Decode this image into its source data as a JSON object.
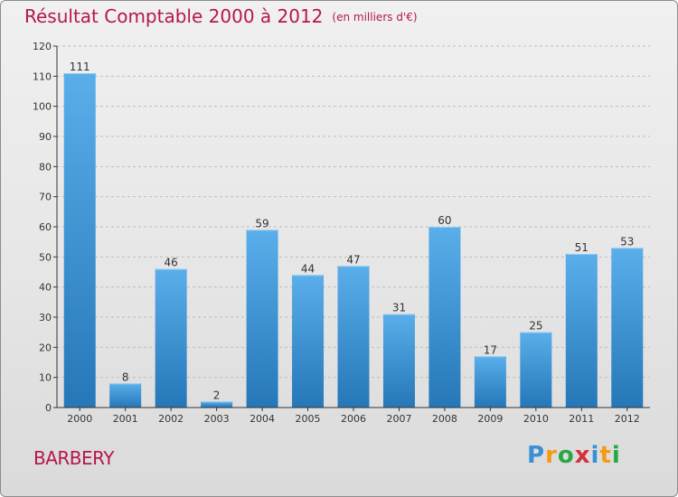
{
  "header": {
    "title": "Résultat Comptable 2000 à 2012",
    "subtitle": "(en milliers d'€)"
  },
  "commune": "BARBERY",
  "logo": {
    "text": "Proxiti",
    "letters": [
      {
        "ch": "P",
        "color": "#3a8fd6"
      },
      {
        "ch": "r",
        "color": "#f39c12"
      },
      {
        "ch": "o",
        "color": "#27a844"
      },
      {
        "ch": "x",
        "color": "#d62f3c"
      },
      {
        "ch": "i",
        "color": "#3a8fd6"
      },
      {
        "ch": "t",
        "color": "#f39c12"
      },
      {
        "ch": "i",
        "color": "#27a844"
      }
    ]
  },
  "colors": {
    "bar_light": "#5aaeea",
    "bar_dark": "#2577b8",
    "title": "#b5164f",
    "grid": "#bdbdbd",
    "axis": "#333333",
    "tick_text": "#333333",
    "label_text": "#333333"
  },
  "chart_data": {
    "type": "bar",
    "title": "Résultat Comptable 2000 à 2012",
    "subtitle": "(en milliers d'€)",
    "xlabel": "",
    "ylabel": "",
    "categories": [
      "2000",
      "2001",
      "2002",
      "2003",
      "2004",
      "2005",
      "2006",
      "2007",
      "2008",
      "2009",
      "2010",
      "2011",
      "2012"
    ],
    "values": [
      111,
      8,
      46,
      2,
      59,
      44,
      47,
      31,
      60,
      17,
      25,
      51,
      53
    ],
    "ylim": [
      0,
      120
    ],
    "yticks": [
      0,
      10,
      20,
      30,
      40,
      50,
      60,
      70,
      80,
      90,
      100,
      110,
      120
    ],
    "grid": true,
    "data_labels": true
  }
}
